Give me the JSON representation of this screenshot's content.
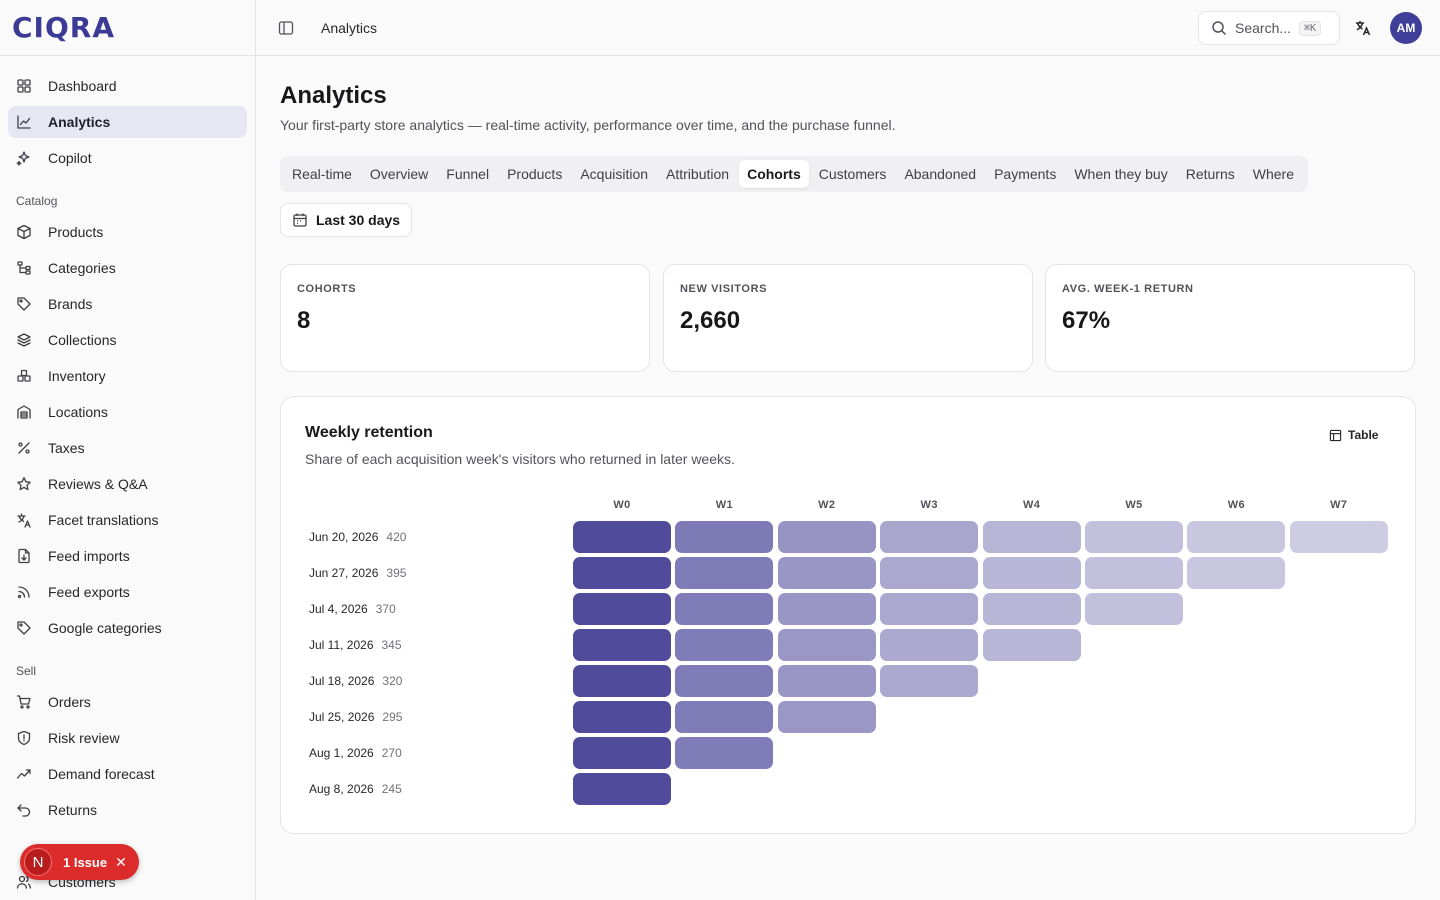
{
  "app": {
    "logo": "CIQRA"
  },
  "sidebar": {
    "top_items": [
      {
        "label": "Dashboard",
        "icon": "grid-icon"
      },
      {
        "label": "Analytics",
        "icon": "chart-line-icon",
        "active": true
      },
      {
        "label": "Copilot",
        "icon": "sparkles-icon"
      }
    ],
    "catalog_label": "Catalog",
    "catalog_items": [
      {
        "label": "Products",
        "icon": "package-icon"
      },
      {
        "label": "Categories",
        "icon": "tree-icon"
      },
      {
        "label": "Brands",
        "icon": "tag-icon"
      },
      {
        "label": "Collections",
        "icon": "layers-icon"
      },
      {
        "label": "Inventory",
        "icon": "boxes-icon"
      },
      {
        "label": "Locations",
        "icon": "warehouse-icon"
      },
      {
        "label": "Taxes",
        "icon": "percent-icon"
      },
      {
        "label": "Reviews & Q&A",
        "icon": "star-icon"
      },
      {
        "label": "Facet translations",
        "icon": "translate-icon"
      },
      {
        "label": "Feed imports",
        "icon": "file-import-icon"
      },
      {
        "label": "Feed exports",
        "icon": "rss-icon"
      },
      {
        "label": "Google categories",
        "icon": "tag-icon"
      }
    ],
    "sell_label": "Sell",
    "sell_items": [
      {
        "label": "Orders",
        "icon": "cart-icon"
      },
      {
        "label": "Risk review",
        "icon": "shield-icon"
      },
      {
        "label": "Demand forecast",
        "icon": "trend-icon"
      },
      {
        "label": "Returns",
        "icon": "undo-icon"
      },
      {
        "label": "",
        "icon": "hidden-icon"
      },
      {
        "label": "Customers",
        "icon": "users-icon"
      }
    ],
    "issue": {
      "badge": "N",
      "label": "1 Issue"
    }
  },
  "topbar": {
    "breadcrumb": "Analytics",
    "search_placeholder": "Search...",
    "search_shortcut": "⌘K",
    "avatar_initials": "AM"
  },
  "page": {
    "title": "Analytics",
    "subtitle": "Your first-party store analytics — real-time activity, performance over time, and the purchase funnel.",
    "tabs": [
      "Real-time",
      "Overview",
      "Funnel",
      "Products",
      "Acquisition",
      "Attribution",
      "Cohorts",
      "Customers",
      "Abandoned",
      "Payments",
      "When they buy",
      "Returns",
      "Where"
    ],
    "active_tab": "Cohorts",
    "date_range": "Last 30 days"
  },
  "stats": [
    {
      "label": "COHORTS",
      "value": "8"
    },
    {
      "label": "NEW VISITORS",
      "value": "2,660"
    },
    {
      "label": "AVG. WEEK-1 RETURN",
      "value": "67%"
    }
  ],
  "retention": {
    "title": "Weekly retention",
    "subtitle": "Share of each acquisition week's visitors who returned in later weeks.",
    "table_button": "Table",
    "base_color": "#4c4799"
  },
  "chart_data": {
    "type": "heatmap",
    "columns": [
      "W0",
      "W1",
      "W2",
      "W3",
      "W4",
      "W5",
      "W6",
      "W7"
    ],
    "rows": [
      {
        "cohort": "Jun 20, 2026",
        "size": "420",
        "values": [
          100,
          68,
          50,
          38,
          28,
          20,
          15,
          12
        ]
      },
      {
        "cohort": "Jun 27, 2026",
        "size": "395",
        "values": [
          100,
          67,
          49,
          37,
          27,
          20,
          15
        ]
      },
      {
        "cohort": "Jul 4, 2026",
        "size": "370",
        "values": [
          100,
          66,
          49,
          37,
          27,
          20
        ]
      },
      {
        "cohort": "Jul 11, 2026",
        "size": "345",
        "values": [
          100,
          66,
          48,
          36,
          27
        ]
      },
      {
        "cohort": "Jul 18, 2026",
        "size": "320",
        "values": [
          100,
          67,
          49,
          36
        ]
      },
      {
        "cohort": "Jul 25, 2026",
        "size": "295",
        "values": [
          100,
          67,
          48
        ]
      },
      {
        "cohort": "Aug 1, 2026",
        "size": "270",
        "values": [
          100,
          66
        ]
      },
      {
        "cohort": "Aug 8, 2026",
        "size": "245",
        "values": [
          100
        ]
      }
    ]
  }
}
